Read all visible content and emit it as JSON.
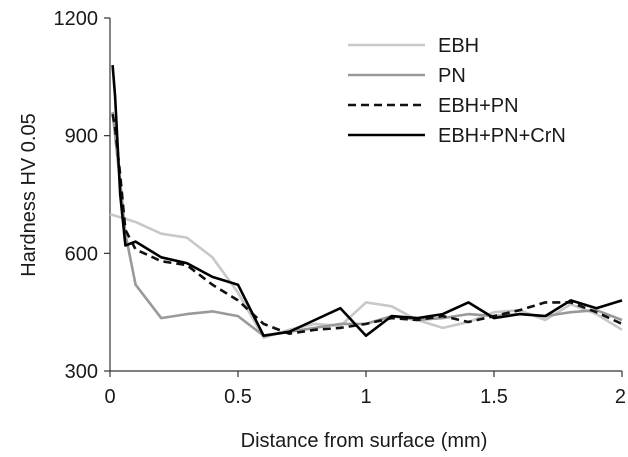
{
  "chart_data": {
    "type": "line",
    "title": "",
    "xlabel": "Distance from surface (mm)",
    "ylabel": "Hardness HV 0.05",
    "xlim": [
      0,
      2
    ],
    "ylim": [
      300,
      1200
    ],
    "x_ticks": [
      0,
      0.5,
      1,
      1.5,
      2
    ],
    "x_tick_labels": [
      "0",
      "0.5",
      "1",
      "1.5",
      "2"
    ],
    "y_ticks": [
      300,
      600,
      900,
      1200
    ],
    "y_tick_labels": [
      "300",
      "600",
      "900",
      "1200"
    ],
    "grid": false,
    "legend_position": "top-right",
    "series": [
      {
        "name": "EBH",
        "color": "#c8c8c8",
        "dash": "solid",
        "x": [
          0,
          0.1,
          0.2,
          0.3,
          0.4,
          0.5,
          0.6,
          0.7,
          0.8,
          0.9,
          1.0,
          1.1,
          1.2,
          1.3,
          1.4,
          1.5,
          1.6,
          1.7,
          1.8,
          1.9,
          2.0
        ],
        "y": [
          700,
          680,
          650,
          640,
          590,
          500,
          385,
          405,
          420,
          415,
          475,
          465,
          430,
          410,
          425,
          450,
          455,
          430,
          470,
          445,
          405
        ]
      },
      {
        "name": "PN",
        "color": "#999999",
        "dash": "solid",
        "x": [
          0.01,
          0.02,
          0.04,
          0.06,
          0.1,
          0.2,
          0.3,
          0.4,
          0.5,
          0.6,
          0.7,
          0.8,
          0.9,
          1.0,
          1.1,
          1.2,
          1.3,
          1.4,
          1.5,
          1.6,
          1.7,
          1.8,
          1.9,
          2.0
        ],
        "y": [
          960,
          900,
          780,
          650,
          520,
          435,
          445,
          452,
          440,
          390,
          400,
          410,
          420,
          420,
          440,
          430,
          435,
          445,
          440,
          445,
          440,
          450,
          455,
          430
        ]
      },
      {
        "name": "EBH+PN",
        "color": "#111111",
        "dash": "dashed",
        "x": [
          0.01,
          0.02,
          0.04,
          0.06,
          0.1,
          0.2,
          0.3,
          0.4,
          0.5,
          0.6,
          0.7,
          0.8,
          0.9,
          1.0,
          1.1,
          1.2,
          1.3,
          1.4,
          1.5,
          1.6,
          1.7,
          1.8,
          1.9,
          2.0
        ],
        "y": [
          955,
          920,
          800,
          660,
          610,
          580,
          570,
          520,
          480,
          420,
          395,
          405,
          410,
          420,
          435,
          430,
          440,
          425,
          440,
          455,
          475,
          475,
          450,
          420
        ]
      },
      {
        "name": "EBH+PN+CrN",
        "color": "#000000",
        "dash": "solid",
        "x": [
          0.01,
          0.02,
          0.04,
          0.06,
          0.1,
          0.2,
          0.3,
          0.4,
          0.5,
          0.6,
          0.7,
          0.8,
          0.9,
          1.0,
          1.1,
          1.2,
          1.3,
          1.4,
          1.5,
          1.6,
          1.7,
          1.8,
          1.9,
          2.0
        ],
        "y": [
          1080,
          1000,
          750,
          620,
          630,
          590,
          575,
          540,
          520,
          390,
          400,
          430,
          460,
          390,
          440,
          435,
          445,
          475,
          435,
          445,
          440,
          480,
          460,
          480
        ]
      }
    ]
  }
}
